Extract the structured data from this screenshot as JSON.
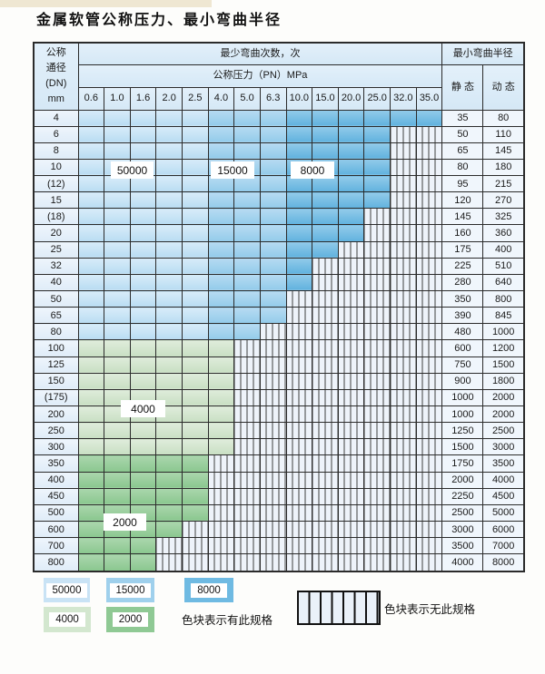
{
  "title": "金属软管公称压力、最小弯曲半径",
  "colors": {
    "cycles_50000": "#c9e3f5",
    "cycles_15000": "#9fd0ec",
    "cycles_8000": "#6fbae2",
    "cycles_4000": "#d3e7cf",
    "cycles_2000": "#8fc994",
    "no_spec_bg": "#eef3fa",
    "header_bg": "#dcecf8",
    "grid_line": "#2b2b2b"
  },
  "table": {
    "dn_header": [
      "公称",
      "通径",
      "(DN)",
      "mm"
    ],
    "cycles_header": "最少弯曲次数，次",
    "pressure_header": "公称压力（PN）MPa",
    "radius_header": "最小弯曲半径",
    "static_label": "静 态",
    "dynamic_label": "动 态",
    "pressures": [
      "0.6",
      "1.0",
      "1.6",
      "2.0",
      "2.5",
      "4.0",
      "5.0",
      "6.3",
      "10.0",
      "15.0",
      "20.0",
      "25.0",
      "32.0",
      "35.0"
    ],
    "cycle_bands": {
      "50000_columns": [
        "0.6",
        "1.0",
        "1.6",
        "2.0",
        "2.5"
      ],
      "15000_columns": [
        "4.0",
        "5.0",
        "6.3"
      ],
      "8000_columns": [
        "10.0",
        "15.0",
        "20.0",
        "25.0",
        "32.0",
        "35.0"
      ]
    },
    "rows": [
      {
        "dn": "4",
        "group": "blue",
        "colored_through": "35.0",
        "radius_static": "35",
        "radius_dynamic": "80"
      },
      {
        "dn": "6",
        "group": "blue",
        "colored_through": "25.0",
        "radius_static": "50",
        "radius_dynamic": "110"
      },
      {
        "dn": "8",
        "group": "blue",
        "colored_through": "25.0",
        "radius_static": "65",
        "radius_dynamic": "145"
      },
      {
        "dn": "10",
        "group": "blue",
        "colored_through": "25.0",
        "radius_static": "80",
        "radius_dynamic": "180"
      },
      {
        "dn": "(12)",
        "group": "blue",
        "colored_through": "25.0",
        "radius_static": "95",
        "radius_dynamic": "215"
      },
      {
        "dn": "15",
        "group": "blue",
        "colored_through": "25.0",
        "radius_static": "120",
        "radius_dynamic": "270"
      },
      {
        "dn": "(18)",
        "group": "blue",
        "colored_through": "20.0",
        "radius_static": "145",
        "radius_dynamic": "325"
      },
      {
        "dn": "20",
        "group": "blue",
        "colored_through": "20.0",
        "radius_static": "160",
        "radius_dynamic": "360"
      },
      {
        "dn": "25",
        "group": "blue",
        "colored_through": "15.0",
        "radius_static": "175",
        "radius_dynamic": "400"
      },
      {
        "dn": "32",
        "group": "blue",
        "colored_through": "10.0",
        "radius_static": "225",
        "radius_dynamic": "510"
      },
      {
        "dn": "40",
        "group": "blue",
        "colored_through": "10.0",
        "radius_static": "280",
        "radius_dynamic": "640"
      },
      {
        "dn": "50",
        "group": "blue",
        "colored_through": "6.3",
        "radius_static": "350",
        "radius_dynamic": "800"
      },
      {
        "dn": "65",
        "group": "blue",
        "colored_through": "6.3",
        "radius_static": "390",
        "radius_dynamic": "845"
      },
      {
        "dn": "80",
        "group": "blue",
        "colored_through": "5.0",
        "radius_static": "480",
        "radius_dynamic": "1000"
      },
      {
        "dn": "100",
        "group": "green4000",
        "colored_through": "4.0",
        "radius_static": "600",
        "radius_dynamic": "1200"
      },
      {
        "dn": "125",
        "group": "green4000",
        "colored_through": "4.0",
        "radius_static": "750",
        "radius_dynamic": "1500"
      },
      {
        "dn": "150",
        "group": "green4000",
        "colored_through": "4.0",
        "radius_static": "900",
        "radius_dynamic": "1800"
      },
      {
        "dn": "(175)",
        "group": "green4000",
        "colored_through": "4.0",
        "radius_static": "1000",
        "radius_dynamic": "2000"
      },
      {
        "dn": "200",
        "group": "green4000",
        "colored_through": "4.0",
        "radius_static": "1000",
        "radius_dynamic": "2000"
      },
      {
        "dn": "250",
        "group": "green4000",
        "colored_through": "4.0",
        "radius_static": "1250",
        "radius_dynamic": "2500"
      },
      {
        "dn": "300",
        "group": "green4000",
        "colored_through": "4.0",
        "radius_static": "1500",
        "radius_dynamic": "3000"
      },
      {
        "dn": "350",
        "group": "green2000",
        "colored_through": "2.5",
        "radius_static": "1750",
        "radius_dynamic": "3500"
      },
      {
        "dn": "400",
        "group": "green2000",
        "colored_through": "2.5",
        "radius_static": "2000",
        "radius_dynamic": "4000"
      },
      {
        "dn": "450",
        "group": "green2000",
        "colored_through": "2.5",
        "radius_static": "2250",
        "radius_dynamic": "4500"
      },
      {
        "dn": "500",
        "group": "green2000",
        "colored_through": "2.5",
        "radius_static": "2500",
        "radius_dynamic": "5000"
      },
      {
        "dn": "600",
        "group": "green2000",
        "colored_through": "2.0",
        "radius_static": "3000",
        "radius_dynamic": "6000"
      },
      {
        "dn": "700",
        "group": "green2000",
        "colored_through": "1.6",
        "radius_static": "3500",
        "radius_dynamic": "7000"
      },
      {
        "dn": "800",
        "group": "green2000",
        "colored_through": "1.6",
        "radius_static": "4000",
        "radius_dynamic": "8000"
      }
    ]
  },
  "overlay_labels": {
    "l50000": "50000",
    "l15000": "15000",
    "l8000": "8000",
    "l4000": "4000",
    "l2000": "2000"
  },
  "legend": {
    "swatch_50000": "50000",
    "swatch_15000": "15000",
    "swatch_8000": "8000",
    "swatch_4000": "4000",
    "swatch_2000": "2000",
    "has_spec_text": "色块表示有此规格",
    "no_spec_text": "色块表示无此规格"
  }
}
